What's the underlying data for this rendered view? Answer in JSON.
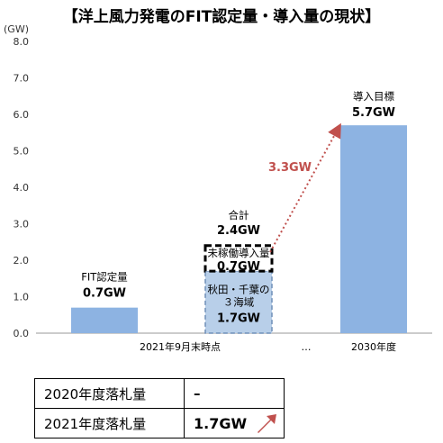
{
  "chart_data": {
    "type": "bar",
    "title": "【洋上風力発電のFIT認定量・導入量の現状】",
    "y_unit": "(GW)",
    "ylim": [
      0,
      8
    ],
    "yticks": [
      "0.0",
      "1.0",
      "2.0",
      "3.0",
      "4.0",
      "5.0",
      "6.0",
      "7.0",
      "8.0"
    ],
    "categories": [
      "FIT認定量",
      "2021年9月末時点",
      "2030年度"
    ],
    "x_tick_labels": [
      "2021年9月末時点",
      "…",
      "2030年度"
    ],
    "values": [
      0.7,
      2.4,
      5.7
    ],
    "stacks": {
      "category": "2021年9月末時点",
      "total_label": "合計",
      "total_value": "2.4GW",
      "segments": [
        {
          "name": "秋田・千葉の\n３海域",
          "value": 1.7,
          "value_label": "1.7GW",
          "style": "dashed-light"
        },
        {
          "name": "未稼働導入量",
          "value": 0.7,
          "value_label": "0.7GW",
          "style": "dashed-outline"
        }
      ]
    },
    "bar_labels": [
      {
        "category": "FIT認定量",
        "name": "FIT認定量",
        "value_label": "0.7GW"
      },
      {
        "category": "2030年度",
        "name": "導入目標",
        "value_label": "5.7GW"
      }
    ],
    "annotation": {
      "text": "3.3GW",
      "color": "#c0504d"
    },
    "colors": {
      "bar": "#8db3e2",
      "arrow": "#c0504d",
      "segment_light": "#b8cfe9"
    }
  },
  "table": {
    "rows": [
      {
        "label": "2020年度落札量",
        "value": "–"
      },
      {
        "label": "2021年度落札量",
        "value": "1.7GW"
      }
    ]
  }
}
